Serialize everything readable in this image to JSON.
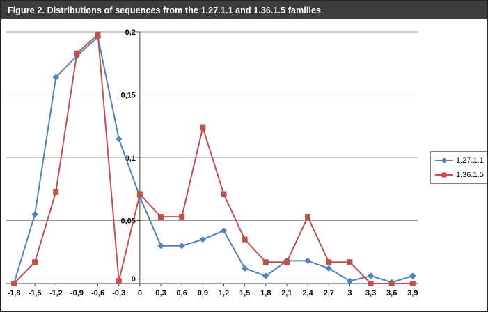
{
  "title": "Figure 2. Distributions of sequences from the 1.27.1.1 and 1.36.1.5 families",
  "chart_data": {
    "type": "line",
    "categories": [
      "-1,8",
      "-1,5",
      "-1,2",
      "-0,9",
      "-0,6",
      "-0,3",
      "0",
      "0,3",
      "0,6",
      "0,9",
      "1,2",
      "1,5",
      "1,8",
      "2,1",
      "2,4",
      "2,7",
      "3",
      "3,3",
      "3,6",
      "3,9"
    ],
    "axis_cross_category": "0",
    "y_ticks": [
      {
        "label": "0",
        "value": 0
      },
      {
        "label": "0,05",
        "value": 0.05
      },
      {
        "label": "0,1",
        "value": 0.1
      },
      {
        "label": "0,15",
        "value": 0.15
      },
      {
        "label": "0,2",
        "value": 0.2
      }
    ],
    "ylim": [
      0,
      0.2
    ],
    "grid": true,
    "legend_position": "right",
    "series": [
      {
        "name": "1.27.1.1",
        "color": "#4F81BD",
        "marker": "diamond",
        "values": [
          0,
          0.055,
          0.164,
          0.181,
          0.196,
          0.115,
          0.069,
          0.03,
          0.03,
          0.035,
          0.042,
          0.012,
          0.006,
          0.018,
          0.018,
          0.012,
          0.002,
          0.006,
          0.001,
          0.006
        ]
      },
      {
        "name": "1.36.1.5",
        "color": "#C0504D",
        "marker": "square",
        "values": [
          0,
          0.017,
          0.073,
          0.183,
          0.198,
          0.002,
          0.071,
          0.053,
          0.053,
          0.124,
          0.071,
          0.035,
          0.017,
          0.017,
          0.053,
          0.017,
          0.017,
          0,
          0,
          0
        ]
      }
    ]
  }
}
